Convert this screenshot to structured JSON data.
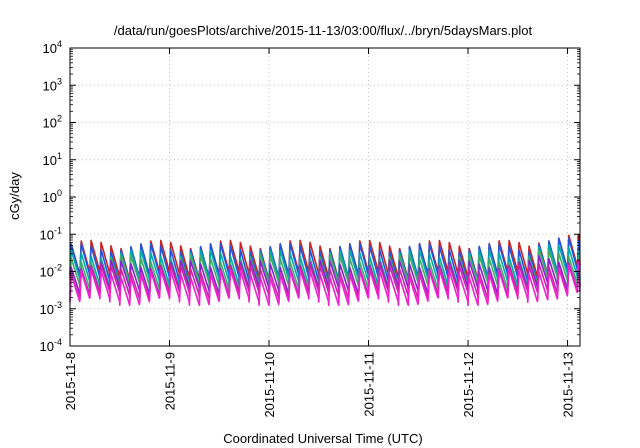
{
  "chart_data": {
    "type": "line",
    "title": "/data/run/goesPlots/archive/2015-11-13/03:00/flux/../bryn/5daysMars.plot",
    "xlabel": "Coordinated Universal Time (UTC)",
    "ylabel": "cGy/day",
    "y_scale": "log",
    "ylim": [
      0.0001,
      10000
    ],
    "xlim": [
      "2015-11-08T00:00",
      "2015-11-13T03:00"
    ],
    "x_ticks": [
      "2015-11-8",
      "2015-11-9",
      "2015-11-10",
      "2015-11-11",
      "2015-11-12",
      "2015-11-13"
    ],
    "y_ticks": [
      {
        "base": "10",
        "exp": "-4"
      },
      {
        "base": "10",
        "exp": "-3"
      },
      {
        "base": "10",
        "exp": "-2"
      },
      {
        "base": "10",
        "exp": "-1"
      },
      {
        "base": "10",
        "exp": "0"
      },
      {
        "base": "10",
        "exp": "1"
      },
      {
        "base": "10",
        "exp": "2"
      },
      {
        "base": "10",
        "exp": "3"
      },
      {
        "base": "10",
        "exp": "4"
      }
    ],
    "grid": true,
    "legend": "none",
    "oscillation": {
      "cycles_per_day": 10,
      "active_from": "2015-11-12T15:00",
      "active_scale": 1.4
    },
    "series": [
      {
        "color": "#cc2222",
        "peak": 0.055,
        "trough": 0.008
      },
      {
        "color": "#2255dd",
        "peak": 0.045,
        "trough": 0.0065
      },
      {
        "color": "#00aaaa",
        "peak": 0.03,
        "trough": 0.005
      },
      {
        "color": "#44aa66",
        "peak": 0.022,
        "trough": 0.004
      },
      {
        "color": "#8822cc",
        "peak": 0.016,
        "trough": 0.003
      },
      {
        "color": "#cc22aa",
        "peak": 0.012,
        "trough": 0.0023
      },
      {
        "color": "#ee22cc",
        "peak": 0.009,
        "trough": 0.0016
      }
    ]
  }
}
